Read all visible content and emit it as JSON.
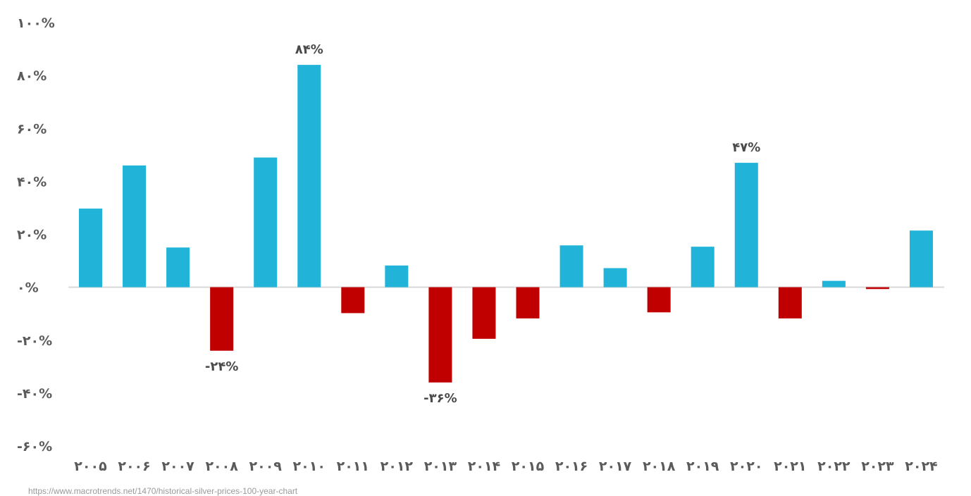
{
  "chart_data": {
    "type": "bar",
    "title": "",
    "xlabel": "",
    "ylabel": "",
    "categories": [
      "۲۰۰۵",
      "۲۰۰۶",
      "۲۰۰۷",
      "۲۰۰۸",
      "۲۰۰۹",
      "۲۰۱۰",
      "۲۰۱۱",
      "۲۰۱۲",
      "۲۰۱۳",
      "۲۰۱۴",
      "۲۰۱۵",
      "۲۰۱۶",
      "۲۰۱۷",
      "۲۰۱۸",
      "۲۰۱۹",
      "۲۰۲۰",
      "۲۰۲۱",
      "۲۰۲۲",
      "۲۰۲۳",
      "۲۰۲۴"
    ],
    "values": [
      29.7,
      46,
      15,
      -24,
      49,
      84,
      -9.8,
      8.2,
      -36,
      -19.5,
      -11.8,
      15.8,
      7.2,
      -9.5,
      15.3,
      47,
      -11.8,
      2.4,
      -0.7,
      21.4
    ],
    "ylim": [
      -60,
      100
    ],
    "yticks": [
      100,
      80,
      60,
      40,
      20,
      0,
      -20,
      -40,
      -60
    ],
    "ytick_labels": [
      "۱۰۰%",
      "۸۰%",
      "۶۰%",
      "۴۰%",
      "۲۰%",
      "۰%",
      "-۲۰%",
      "-۴۰%",
      "-۶۰%"
    ],
    "annotations": [
      {
        "index": 3,
        "text": "-۲۴%"
      },
      {
        "index": 5,
        "text": "۸۴%"
      },
      {
        "index": 8,
        "text": "-۳۶%"
      },
      {
        "index": 15,
        "text": "۴۷%"
      }
    ],
    "colors": {
      "positive": "#21b4d8",
      "negative": "#c00000",
      "zero_line": "#d9d9d9"
    },
    "grid": false,
    "legend": "none"
  },
  "source_text": "https://www.macrotrends.net/1470/historical-silver-prices-100-year-chart"
}
